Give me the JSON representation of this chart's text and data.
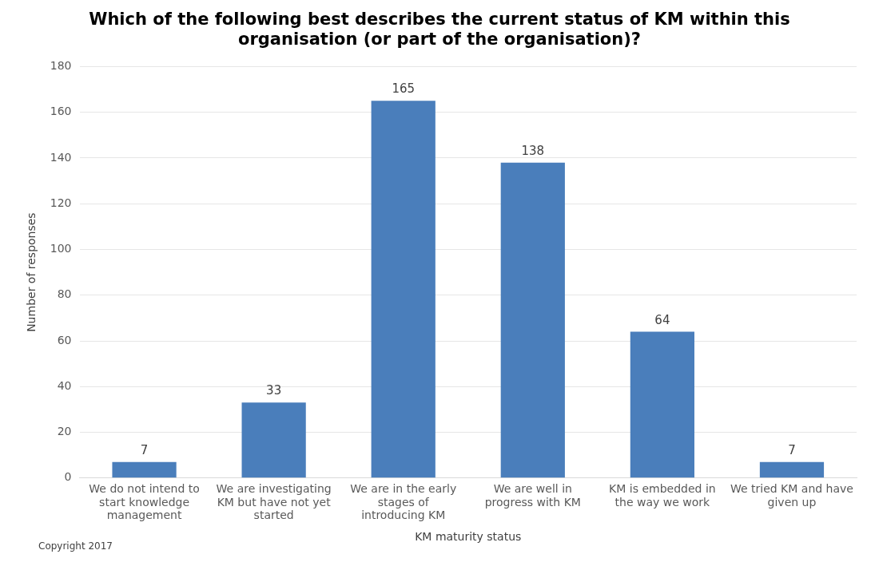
{
  "chart_data": {
    "type": "bar",
    "title": "Which of the following best describes the current status of KM within this organisation (or part of the organisation)?",
    "xlabel": "KM maturity status",
    "ylabel": "Number of responses",
    "categories": [
      "We do not intend to start knowledge management",
      "We are investigating KM but have not yet started",
      "We are in the early stages of introducing KM",
      "We are well in progress with KM",
      "KM is embedded in the way we work",
      "We tried KM and have given up"
    ],
    "values": [
      7,
      33,
      165,
      138,
      64,
      7
    ],
    "color": "#4a7ebb",
    "ylim": [
      0,
      180
    ],
    "yticks": [
      0,
      20,
      40,
      60,
      80,
      100,
      120,
      140,
      160,
      180
    ],
    "grid": "y",
    "data_labels": true,
    "annotations": [
      "Copyright 2017"
    ]
  }
}
